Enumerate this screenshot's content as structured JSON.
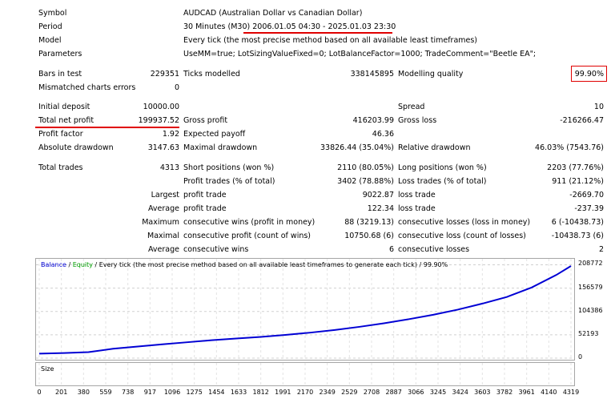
{
  "header": {
    "symbol_label": "Symbol",
    "symbol_value": "AUDCAD (Australian Dollar vs Canadian Dollar)",
    "period_label": "Period",
    "period_prefix": "30 Minutes (M30) ",
    "period_range": "2006.01.05 04:30 - 2025.01.03 23:30",
    "model_label": "Model",
    "model_value": "Every tick (the most precise method based on all available least timeframes)",
    "parameters_label": "Parameters",
    "parameters_value": "UseMM=true; LotSizingValueFixed=0; LotBalanceFactor=1000; TradeComment=\"Beetle EA\";"
  },
  "test": {
    "bars_label": "Bars in test",
    "bars_value": "229351",
    "ticks_label": "Ticks modelled",
    "ticks_value": "338145895",
    "quality_label": "Modelling quality",
    "quality_value": "99.90%",
    "mismatch_label": "Mismatched charts errors",
    "mismatch_value": "0"
  },
  "results": {
    "initial_deposit_label": "Initial deposit",
    "initial_deposit_value": "10000.00",
    "spread_label": "Spread",
    "spread_value": "10",
    "net_profit_label": "Total net profit",
    "net_profit_value": "199937.52",
    "gross_profit_label": "Gross profit",
    "gross_profit_value": "416203.99",
    "gross_loss_label": "Gross loss",
    "gross_loss_value": "-216266.47",
    "profit_factor_label": "Profit factor",
    "profit_factor_value": "1.92",
    "expected_payoff_label": "Expected payoff",
    "expected_payoff_value": "46.36",
    "abs_dd_label": "Absolute drawdown",
    "abs_dd_value": "3147.63",
    "max_dd_label": "Maximal drawdown",
    "max_dd_value": "33826.44 (35.04%)",
    "rel_dd_label": "Relative drawdown",
    "rel_dd_value": "46.03% (7543.76)"
  },
  "trades": {
    "total_label": "Total trades",
    "total_value": "4313",
    "short_label": "Short positions (won %)",
    "short_value": "2110 (80.05%)",
    "long_label": "Long positions (won %)",
    "long_value": "2203 (77.76%)",
    "profit_trades_label": "Profit trades (% of total)",
    "profit_trades_value": "3402 (78.88%)",
    "loss_trades_label": "Loss trades (% of total)",
    "loss_trades_value": "911 (21.12%)",
    "largest_label": "Largest",
    "largest_profit_label": "profit trade",
    "largest_profit_value": "9022.87",
    "largest_loss_label": "loss trade",
    "largest_loss_value": "-2669.70",
    "average_label": "Average",
    "average_profit_label": "profit trade",
    "average_profit_value": "122.34",
    "average_loss_label": "loss trade",
    "average_loss_value": "-237.39",
    "maximum_label": "Maximum",
    "max_wins_label": "consecutive wins (profit in money)",
    "max_wins_value": "88 (3219.13)",
    "max_losses_label": "consecutive losses (loss in money)",
    "max_losses_value": "6 (-10438.73)",
    "maximal_label": "Maximal",
    "maximal_profit_label": "consecutive profit (count of wins)",
    "maximal_profit_value": "10750.68 (6)",
    "maximal_loss_label": "consecutive loss (count of losses)",
    "maximal_loss_value": "-10438.73 (6)",
    "average2_label": "Average",
    "avg_wins_label": "consecutive wins",
    "avg_wins_value": "6",
    "avg_losses_label": "consecutive losses",
    "avg_losses_value": "2"
  },
  "chart_data": {
    "type": "line",
    "title_balance": "Balance",
    "title_sep1": " / ",
    "title_equity": "Equity",
    "title_rest": " / Every tick (the most precise method based on all available least timeframes to generate each tick) / 99.90%",
    "size_label": "Size",
    "y_ticks": [
      "208772",
      "156579",
      "104386",
      "52193",
      "0"
    ],
    "y_tick_values": [
      208772,
      156579,
      104386,
      52193,
      0
    ],
    "ylim": [
      0,
      215000
    ],
    "x_ticks": [
      "0",
      "201",
      "380",
      "559",
      "738",
      "917",
      "1096",
      "1275",
      "1454",
      "1633",
      "1812",
      "1991",
      "2170",
      "2349",
      "2529",
      "2708",
      "2887",
      "3066",
      "3245",
      "3424",
      "3603",
      "3782",
      "3961",
      "4140",
      "4319"
    ],
    "xlim": [
      0,
      4319
    ],
    "series": [
      {
        "color": "#0000d4",
        "x": [
          0,
          200,
          400,
          600,
          800,
          1000,
          1200,
          1400,
          1600,
          1800,
          2000,
          2200,
          2400,
          2600,
          2800,
          3000,
          3200,
          3400,
          3600,
          3800,
          4000,
          4200,
          4319
        ],
        "y": [
          10000,
          11500,
          13500,
          21000,
          26000,
          31000,
          35500,
          40000,
          44000,
          47500,
          52000,
          57000,
          63000,
          70000,
          78000,
          87000,
          97000,
          108500,
          122000,
          137000,
          158000,
          186000,
          206000
        ]
      }
    ],
    "colors": {
      "balance": "#0000d4",
      "equity": "#00a000",
      "size": "#00a000"
    }
  }
}
